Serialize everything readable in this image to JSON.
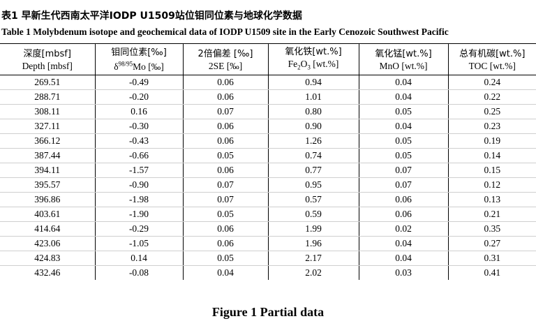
{
  "title_cn": "表1 早新生代西南太平洋IODP U1509站位钼同位素与地球化学数据",
  "title_en": "Table 1  Molybdenum isotope and geochemical data of IODP U1509 site in the Early Cenozoic Southwest Pacific",
  "columns": [
    {
      "cn": "深度[mbsf]",
      "en": "Depth [mbsf]"
    },
    {
      "cn": "钼同位素[‰]",
      "en_prefix": "δ",
      "en_sup": "98/95",
      "en_suffix": "Mo [‰]"
    },
    {
      "cn": "2倍偏差 [‰]",
      "en": "2SE [‰]"
    },
    {
      "cn": "氧化铁[wt.%]",
      "en_prefix": "Fe",
      "en_sub1": "2",
      "en_mid": "O",
      "en_sub2": "3",
      "en_suffix": " [wt.%]"
    },
    {
      "cn": "氧化锰[wt.%]",
      "en": "MnO [wt.%]"
    },
    {
      "cn": "总有机碳[wt.%]",
      "en": "TOC [wt.%]"
    }
  ],
  "rows": [
    [
      "269.51",
      "-0.49",
      "0.06",
      "0.94",
      "0.04",
      "0.24"
    ],
    [
      "288.71",
      "-0.20",
      "0.06",
      "1.01",
      "0.04",
      "0.22"
    ],
    [
      "308.11",
      "0.16",
      "0.07",
      "0.80",
      "0.05",
      "0.25"
    ],
    [
      "327.11",
      "-0.30",
      "0.06",
      "0.90",
      "0.04",
      "0.23"
    ],
    [
      "366.12",
      "-0.43",
      "0.06",
      "1.26",
      "0.05",
      "0.19"
    ],
    [
      "387.44",
      "-0.66",
      "0.05",
      "0.74",
      "0.05",
      "0.14"
    ],
    [
      "394.11",
      "-1.57",
      "0.06",
      "0.77",
      "0.07",
      "0.15"
    ],
    [
      "395.57",
      "-0.90",
      "0.07",
      "0.95",
      "0.07",
      "0.12"
    ],
    [
      "396.86",
      "-1.98",
      "0.07",
      "0.57",
      "0.06",
      "0.13"
    ],
    [
      "403.61",
      "-1.90",
      "0.05",
      "0.59",
      "0.06",
      "0.21"
    ],
    [
      "414.64",
      "-0.29",
      "0.06",
      "1.99",
      "0.02",
      "0.35"
    ],
    [
      "423.06",
      "-1.05",
      "0.06",
      "1.96",
      "0.04",
      "0.27"
    ],
    [
      "424.83",
      "0.14",
      "0.05",
      "2.17",
      "0.04",
      "0.31"
    ],
    [
      "432.46",
      "-0.08",
      "0.04",
      "2.02",
      "0.03",
      "0.41"
    ]
  ],
  "caption": "Figure 1  Partial data"
}
